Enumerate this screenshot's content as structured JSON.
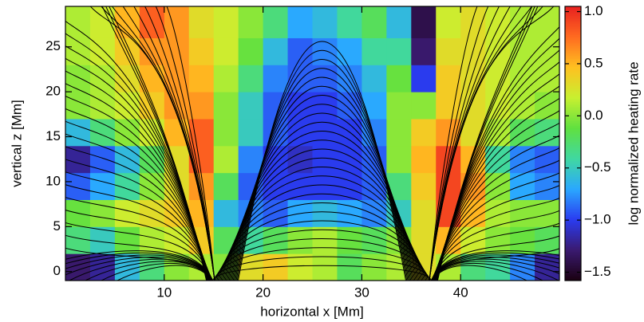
{
  "chart_data": {
    "type": "heatmap",
    "x_label": "horizontal x [Mm]",
    "y_label": "vertical z [Mm]",
    "colorbar_label": "log normalized heating rate",
    "xlim": [
      0,
      50
    ],
    "ylim": [
      -1,
      29.5
    ],
    "xticks": [
      10,
      20,
      30,
      40
    ],
    "yticks": [
      0,
      5,
      10,
      15,
      20,
      25
    ],
    "clim": [
      -1.58,
      1.05
    ],
    "cticks": [
      {
        "value": 1.0,
        "label": "1.0"
      },
      {
        "value": 0.5,
        "label": "0.5"
      },
      {
        "value": 0.0,
        "label": "0.0"
      },
      {
        "value": -0.5,
        "label": "−0.5"
      },
      {
        "value": -1.0,
        "label": "−1.0"
      },
      {
        "value": -1.5,
        "label": "−1.5"
      }
    ],
    "colormap": [
      "#1a0010",
      "#3a1a70",
      "#2a3cf0",
      "#2aa8ff",
      "#40d8a0",
      "#60e040",
      "#c8f030",
      "#ffc020",
      "#ff6a20",
      "#e82020"
    ],
    "x_edges": [
      0,
      2.5,
      5,
      7.5,
      10,
      12.5,
      15,
      17.5,
      20,
      22.5,
      25,
      27.5,
      30,
      32.5,
      35,
      37.5,
      40,
      42.5,
      45,
      47.5,
      50
    ],
    "y_edges": [
      -1,
      2,
      5,
      8,
      11,
      14,
      17,
      20,
      23,
      26,
      29.5
    ],
    "z": [
      [
        -1.3,
        -1.2,
        -0.6,
        -0.3,
        0.0,
        0.1,
        0.0,
        0.3,
        0.4,
        0.2,
        0.1,
        -0.2,
        0.0,
        0.1,
        0.3,
        0.1,
        -0.3,
        -0.4,
        -0.8,
        -1.2
      ],
      [
        -0.3,
        -0.5,
        -0.1,
        0.1,
        0.2,
        0.4,
        -0.2,
        -0.4,
        -0.2,
        0.0,
        0.1,
        -0.1,
        -0.2,
        0.0,
        0.3,
        0.5,
        0.2,
        0.0,
        -0.1,
        -0.2
      ],
      [
        -0.1,
        0.0,
        0.2,
        0.3,
        0.4,
        0.5,
        -0.6,
        -0.8,
        -0.9,
        -0.7,
        -0.6,
        -0.7,
        -0.8,
        -0.5,
        0.3,
        0.9,
        0.5,
        0.1,
        0.0,
        0.0
      ],
      [
        -0.9,
        -0.7,
        -0.4,
        0.0,
        0.3,
        0.6,
        -0.2,
        -0.9,
        -1.0,
        -1.0,
        -1.0,
        -1.0,
        -0.9,
        -0.3,
        0.4,
        0.9,
        0.6,
        0.0,
        -0.7,
        -0.8
      ],
      [
        -1.2,
        -0.9,
        -0.6,
        -0.2,
        0.3,
        0.8,
        0.1,
        -0.8,
        -1.0,
        -1.1,
        -1.0,
        -1.0,
        -0.9,
        0.0,
        0.5,
        0.9,
        0.5,
        -0.4,
        -0.8,
        -0.9
      ],
      [
        -0.6,
        -0.3,
        0.0,
        0.2,
        0.5,
        0.8,
        0.0,
        -0.5,
        -0.9,
        -1.0,
        -1.0,
        -1.0,
        -0.8,
        0.0,
        0.4,
        0.6,
        0.3,
        0.1,
        -0.2,
        -0.3
      ],
      [
        0.0,
        0.1,
        0.2,
        0.4,
        0.6,
        0.6,
        0.0,
        -0.5,
        -0.9,
        -1.0,
        -1.0,
        -0.9,
        -0.7,
        0.0,
        0.0,
        0.4,
        0.3,
        0.2,
        0.1,
        0.0
      ],
      [
        0.0,
        0.1,
        0.3,
        0.5,
        0.6,
        0.5,
        0.1,
        -0.3,
        -0.8,
        -0.9,
        -0.9,
        -0.8,
        -0.6,
        -0.1,
        -1.0,
        0.4,
        0.3,
        0.2,
        0.1,
        0.1
      ],
      [
        0.1,
        0.2,
        0.4,
        0.6,
        0.6,
        0.4,
        0.2,
        -0.1,
        -0.6,
        -0.9,
        -0.8,
        -0.7,
        -0.4,
        -0.4,
        -1.3,
        0.3,
        0.3,
        0.2,
        0.1,
        0.1
      ],
      [
        0.1,
        0.2,
        0.5,
        0.8,
        0.6,
        0.3,
        0.2,
        0.0,
        -0.3,
        -0.7,
        -0.6,
        -0.4,
        -0.2,
        -0.6,
        -1.4,
        0.2,
        0.3,
        0.2,
        0.1,
        0.1
      ]
    ]
  }
}
